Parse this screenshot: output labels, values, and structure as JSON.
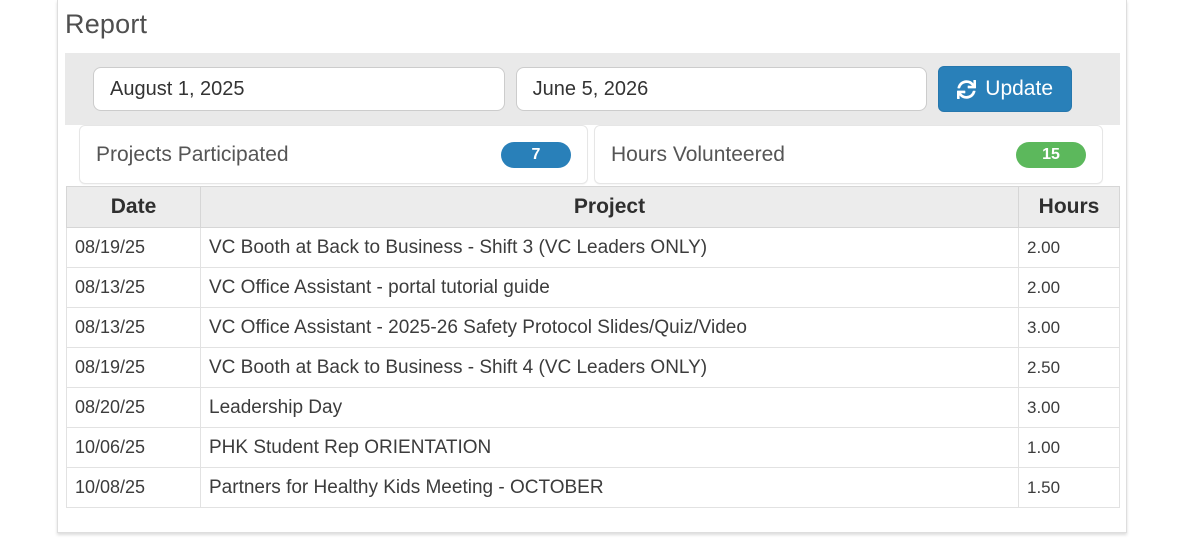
{
  "page": {
    "title": "Report"
  },
  "filters": {
    "start_date": "August 1, 2025",
    "end_date": "June 5, 2026",
    "update_label": "Update",
    "update_icon": "refresh-icon"
  },
  "stats": [
    {
      "label": "Projects Participated",
      "value": "7",
      "badge_color": "#2980b9"
    },
    {
      "label": "Hours Volunteered",
      "value": "15",
      "badge_color": "#5cb85c"
    }
  ],
  "table": {
    "columns": [
      "Date",
      "Project",
      "Hours"
    ],
    "rows": [
      {
        "date": "08/19/25",
        "project": "VC Booth at Back to Business - Shift 3 (VC Leaders ONLY)",
        "hours": "2.00"
      },
      {
        "date": "08/13/25",
        "project": "VC Office Assistant - portal tutorial guide",
        "hours": "2.00"
      },
      {
        "date": "08/13/25",
        "project": "VC Office Assistant - 2025-26 Safety Protocol Slides/Quiz/Video",
        "hours": "3.00"
      },
      {
        "date": "08/19/25",
        "project": "VC Booth at Back to Business - Shift 4 (VC Leaders ONLY)",
        "hours": "2.50"
      },
      {
        "date": "08/20/25",
        "project": "Leadership Day",
        "hours": "3.00"
      },
      {
        "date": "10/06/25",
        "project": "PHK Student Rep ORIENTATION",
        "hours": "1.00"
      },
      {
        "date": "10/08/25",
        "project": "Partners for Healthy Kids Meeting - OCTOBER",
        "hours": "1.50"
      }
    ]
  },
  "colors": {
    "accent_blue": "#2980b9",
    "accent_green": "#5cb85c",
    "filter_bar_bg": "#e9e9e9",
    "table_header_bg": "#ececec"
  }
}
